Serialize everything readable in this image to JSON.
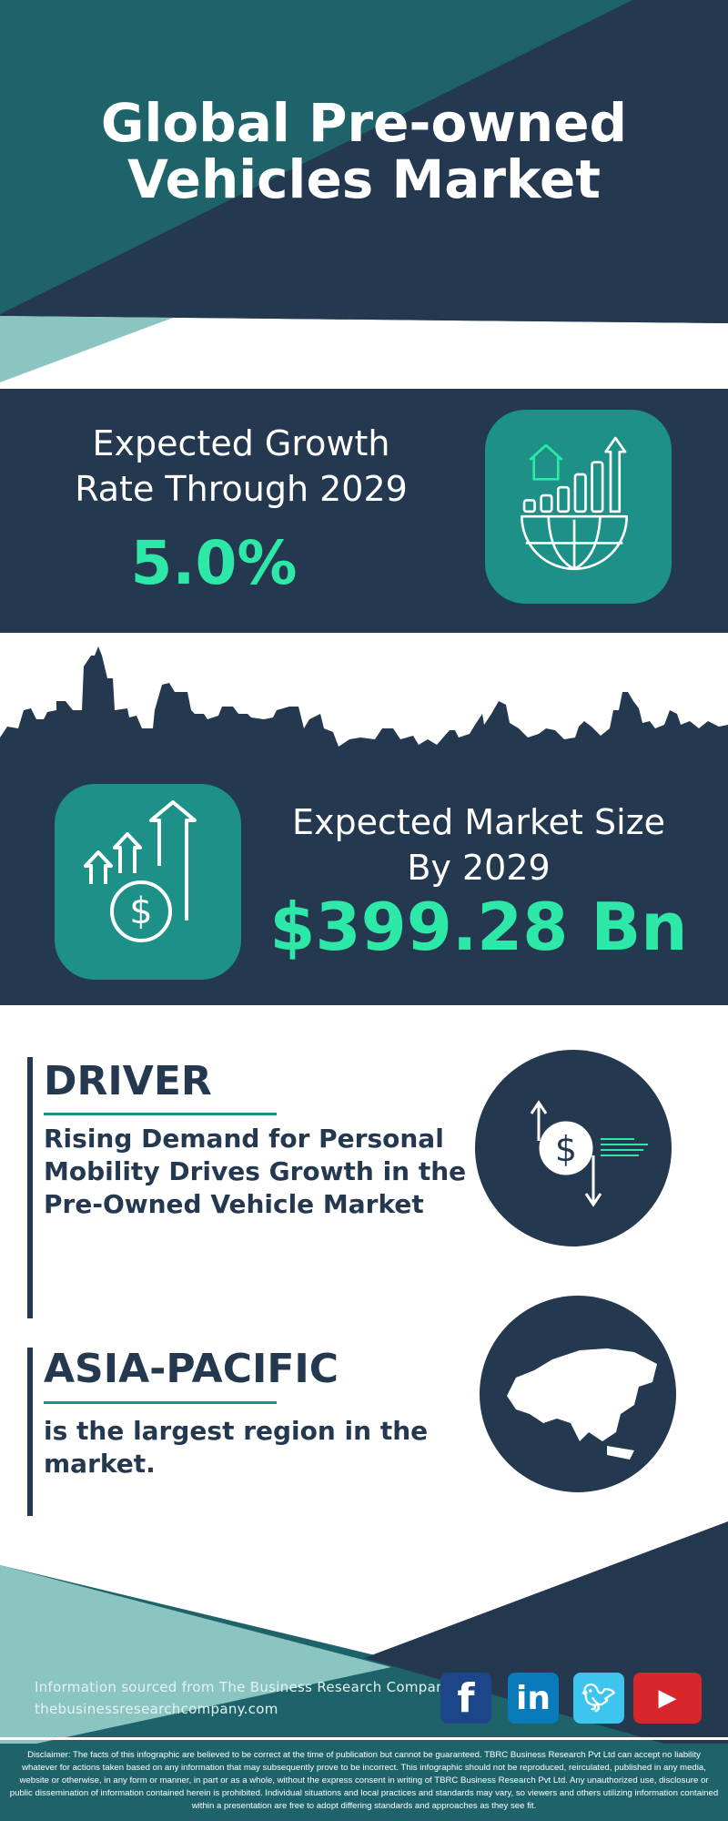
{
  "header": {
    "title_line1": "Global Pre-owned",
    "title_line2": "Vehicles Market"
  },
  "growth": {
    "label_line1": "Expected Growth",
    "label_line2": "Rate Through 2029",
    "value": "5.0%",
    "icon": "globe-growth-chart-icon"
  },
  "market_size": {
    "label_line1": "Expected Market Size",
    "label_line2": "By 2029",
    "value": "$399.28 Bn",
    "icon": "money-growth-arrows-icon"
  },
  "driver": {
    "heading": "DRIVER",
    "text_lines": [
      "Rising Demand for Personal",
      "Mobility Drives Growth in the",
      "Pre-Owned Vehicle Market"
    ],
    "icon": "dollar-exchange-icon"
  },
  "region": {
    "heading": "ASIA-PACIFIC",
    "text_lines": [
      "is the largest region in the",
      "market."
    ],
    "icon": "asia-map-icon"
  },
  "footer": {
    "source": "Information sourced from The Business Research Company",
    "website": "thebusinessresearchcompany.com",
    "social": [
      "facebook",
      "linkedin",
      "twitter",
      "youtube"
    ]
  },
  "disclaimer": "Disclaimer: The facts of this infographic are believed to be correct at the time of publication but cannot be guaranteed. TBRC Business Research Pvt Ltd can accept no liability whatever for actions taken based on any information that may subsequently prove to be incorrect. This infographic should not be reproduced, reirculated, published in any media, website or otherwise, in any form or manner, in part or as a whole, without the express consent in writing of TBRC Business Research Pvt Ltd. Any unauthorized use, disclosure or public dissemination of information contained herein is prohibited. Individual situations and local practices and standards may vary, so viewers and others utilizing information contained within a presentation are free to adopt differing standards and approaches as they see fit.",
  "colors": {
    "navy": "#243850",
    "teal": "#1e6369",
    "accent_teal": "#1d9187",
    "green": "#2ee8a8",
    "light_teal": "#8bc5c1"
  }
}
